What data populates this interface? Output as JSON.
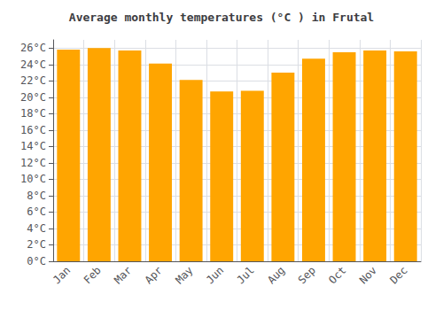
{
  "chart_data": {
    "type": "bar",
    "title": "Average monthly temperatures (°C ) in Frutal",
    "categories": [
      "Jan",
      "Feb",
      "Mar",
      "Apr",
      "May",
      "Jun",
      "Jul",
      "Aug",
      "Sep",
      "Oct",
      "Nov",
      "Dec"
    ],
    "values": [
      25.8,
      26.0,
      25.7,
      24.1,
      22.1,
      20.7,
      20.8,
      23.0,
      24.7,
      25.5,
      25.7,
      25.6
    ],
    "color": "#FFA500",
    "ylim": [
      0,
      27
    ],
    "yticks": [
      {
        "value": 0,
        "label": "0°C"
      },
      {
        "value": 2,
        "label": "2°C"
      },
      {
        "value": 4,
        "label": "4°C"
      },
      {
        "value": 6,
        "label": "6°C"
      },
      {
        "value": 8,
        "label": "8°C"
      },
      {
        "value": 10,
        "label": "10°C"
      },
      {
        "value": 12,
        "label": "12°C"
      },
      {
        "value": 14,
        "label": "14°C"
      },
      {
        "value": 16,
        "label": "16°C"
      },
      {
        "value": 18,
        "label": "18°C"
      },
      {
        "value": 20,
        "label": "20°C"
      },
      {
        "value": 22,
        "label": "22°C"
      },
      {
        "value": 24,
        "label": "24°C"
      },
      {
        "value": 26,
        "label": "26°C"
      }
    ],
    "grid": true
  }
}
